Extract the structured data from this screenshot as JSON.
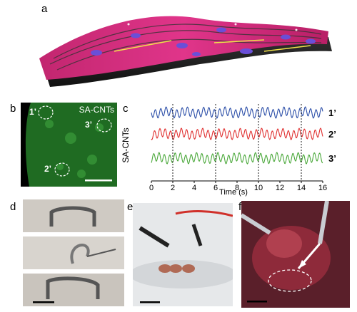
{
  "panels": {
    "a": {
      "letter": "a"
    },
    "b": {
      "letter": "b",
      "label": "SA-CNTs",
      "rois": [
        "1’",
        "2’",
        "3’"
      ]
    },
    "c": {
      "letter": "c"
    },
    "d": {
      "letter": "d"
    },
    "e": {
      "letter": "e"
    },
    "f": {
      "letter": "f"
    }
  },
  "chart_data": {
    "type": "line",
    "xlabel": "Time (s)",
    "ylabel": "SA-CNTs",
    "xlim": [
      0,
      16
    ],
    "xticks": [
      0,
      2,
      4,
      6,
      8,
      10,
      12,
      14,
      16
    ],
    "dashed_markers_x": [
      2,
      6,
      10,
      14
    ],
    "series": [
      {
        "name": "1’",
        "color": "#2b4ea8",
        "period_s": 0.5,
        "amplitude": 1.0,
        "offset": 0
      },
      {
        "name": "2’",
        "color": "#e03030",
        "period_s": 0.5,
        "amplitude": 1.0,
        "offset": 0
      },
      {
        "name": "3’",
        "color": "#4aa83a",
        "period_s": 0.5,
        "amplitude": 1.0,
        "offset": 0
      }
    ]
  }
}
